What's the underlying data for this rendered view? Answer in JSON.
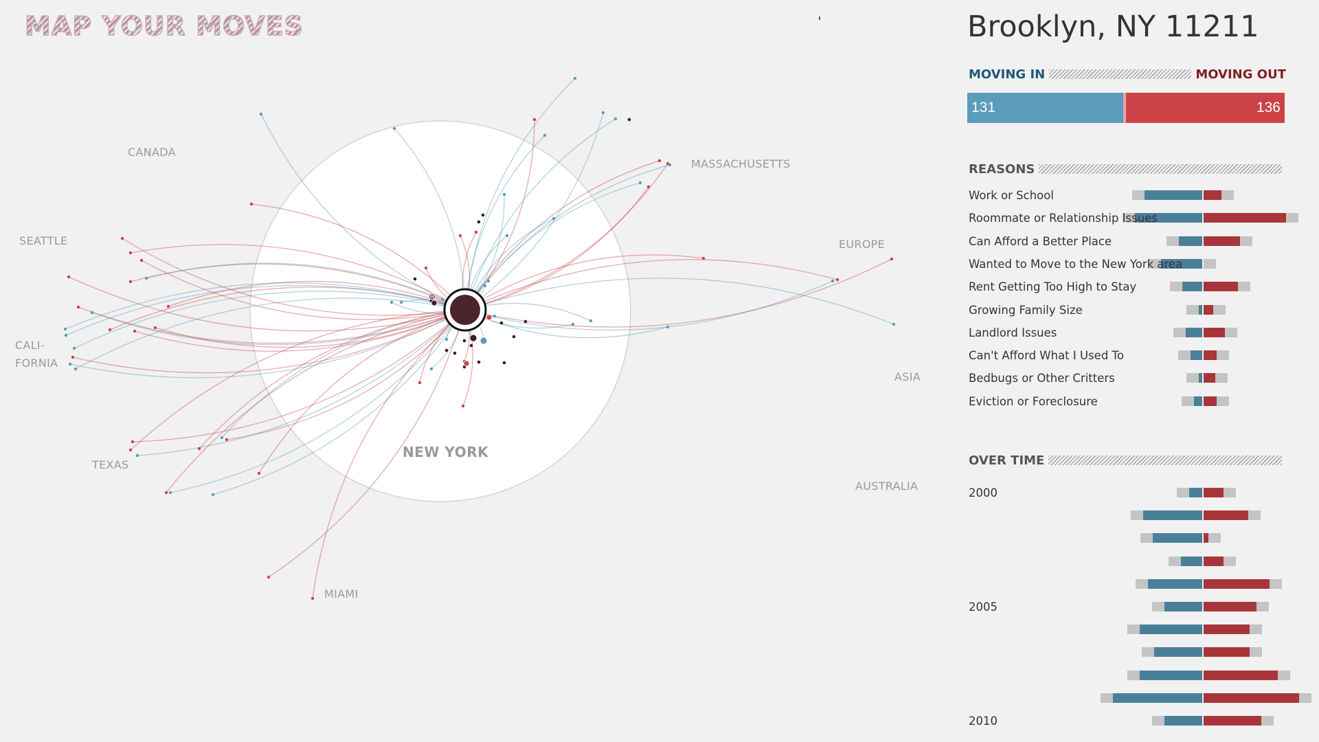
{
  "app": {
    "title": "MAP YOUR MOVES"
  },
  "map": {
    "center_label": "NEW YORK",
    "regions": {
      "canada": "CANADA",
      "seattle": "SEATTLE",
      "california_line1": "CALI-",
      "california_line2": "FORNIA",
      "texas": "TEXAS",
      "miami": "MIAMI",
      "massachusetts": "MASSACHUSETTS",
      "europe": "EUROPE",
      "asia": "ASIA",
      "australia": "AUSTRALIA"
    },
    "colors": {
      "in": "#5b9bbc",
      "out": "#cb4347",
      "local": "#3a1d22"
    }
  },
  "panel": {
    "location": "Brooklyn, NY 11211",
    "totals": {
      "in_label": "MOVING IN",
      "out_label": "MOVING OUT",
      "in": 131,
      "out": 136
    },
    "reasons_title": "REASONS",
    "reasons": [
      {
        "label": "Work or School",
        "in": 70,
        "out": 22
      },
      {
        "label": "Roommate or Relationship Issues",
        "in": 82,
        "out": 100
      },
      {
        "label": "Can Afford a Better Place",
        "in": 28,
        "out": 44
      },
      {
        "label": "Wanted to Move to the New York area",
        "in": 50,
        "out": 0
      },
      {
        "label": "Rent Getting Too High to Stay",
        "in": 24,
        "out": 42
      },
      {
        "label": "Growing Family Size",
        "in": 4,
        "out": 12
      },
      {
        "label": "Landlord Issues",
        "in": 20,
        "out": 26
      },
      {
        "label": "Can't Afford What I Used To",
        "in": 14,
        "out": 16
      },
      {
        "label": "Bedbugs or Other Critters",
        "in": 4,
        "out": 14
      },
      {
        "label": "Eviction or Foreclosure",
        "in": 10,
        "out": 16
      }
    ],
    "overtime_title": "OVER TIME",
    "years": [
      {
        "year": "2000",
        "in": 16,
        "out": 24
      },
      {
        "year": "",
        "in": 72,
        "out": 54
      },
      {
        "year": "",
        "in": 60,
        "out": 6
      },
      {
        "year": "",
        "in": 26,
        "out": 24
      },
      {
        "year": "",
        "in": 66,
        "out": 80
      },
      {
        "year": "2005",
        "in": 46,
        "out": 64
      },
      {
        "year": "",
        "in": 76,
        "out": 56
      },
      {
        "year": "",
        "in": 58,
        "out": 56
      },
      {
        "year": "",
        "in": 76,
        "out": 90
      },
      {
        "year": "",
        "in": 108,
        "out": 116
      },
      {
        "year": "2010",
        "in": 46,
        "out": 70
      }
    ]
  }
}
